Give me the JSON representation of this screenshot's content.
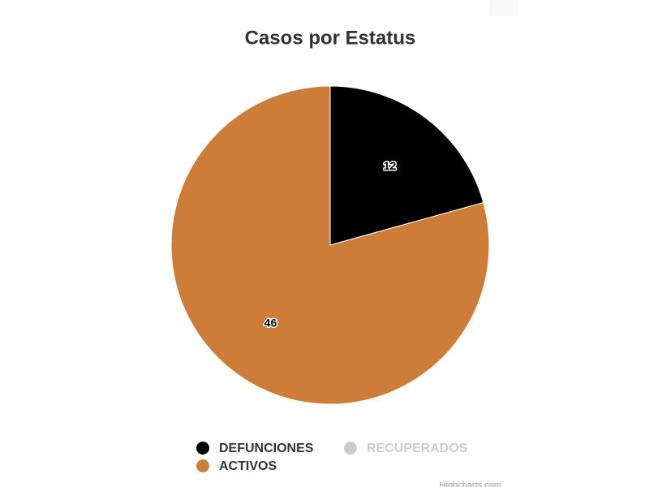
{
  "chart_data": {
    "type": "pie",
    "title": "Casos por Estatus",
    "categories": [
      "DEFUNCIONES",
      "RECUPERADOS",
      "ACTIVOS"
    ],
    "values": [
      12,
      null,
      46
    ],
    "colors": [
      "#000000",
      "#cccccc",
      "#cd7d38"
    ],
    "hidden": [
      false,
      true,
      false
    ],
    "credits": "Highcharts.com"
  }
}
